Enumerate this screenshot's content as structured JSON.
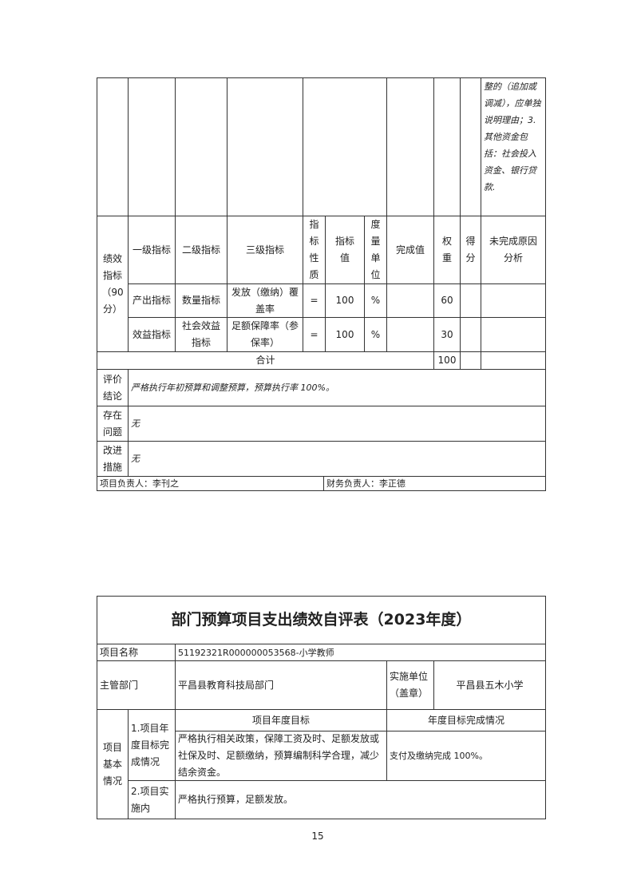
{
  "table1": {
    "note_text": "整的（追加或调减），应单独说明理由；3.其他资金包括：社会投入资金、银行贷款.",
    "section_label": "绩效指标（90分）",
    "headers": [
      "一级指标",
      "二级指标",
      "三级指标",
      "指标性质",
      "指标值",
      "度量单位",
      "完成值",
      "权重",
      "得分",
      "未完成原因分析"
    ],
    "rows": [
      [
        "产出指标",
        "数量指标",
        "发放（缴纳）覆盖率",
        "=",
        "100",
        "%",
        "",
        "60",
        "",
        ""
      ],
      [
        "效益指标",
        "社会效益指标",
        "足额保障率（参保率）",
        "=",
        "100",
        "%",
        "",
        "30",
        "",
        ""
      ]
    ],
    "total_label": "合计",
    "total_weight": "100",
    "conclusion_label": "评价结论",
    "conclusion_text": "严格执行年初预算和调整预算，预算执行率 100%。",
    "problem_label": "存在问题",
    "problem_text": "无",
    "measure_label": "改进措施",
    "measure_text": "无",
    "project_leader": "项目负责人：李刊之",
    "finance_leader": "财务负责人：李正德"
  },
  "table2": {
    "title": "部门预算项目支出绩效自评表（2023年度）",
    "project_name_label": "项目名称",
    "project_name": "51192321R000000053568-小学教师",
    "dept_label": "主管部门",
    "dept": "平昌县教育科技局部门",
    "unit_label": "实施单位（盖章）",
    "unit": "平昌县五木小学",
    "basic_label": "项目基本情况",
    "goal_label": "1.项目年度目标完成情况",
    "goal_header": "项目年度目标",
    "completion_header": "年度目标完成情况",
    "goal_text": "严格执行相关政策，保障工资及时、足额发放或社保及时、足额缴纳，预算编制科学合理，减少结余资金。",
    "completion_text": "支付及缴纳完成 100%。",
    "impl_label": "2.项目实施内",
    "impl_text": "严格执行预算，足额发放。"
  },
  "page_number": "15"
}
